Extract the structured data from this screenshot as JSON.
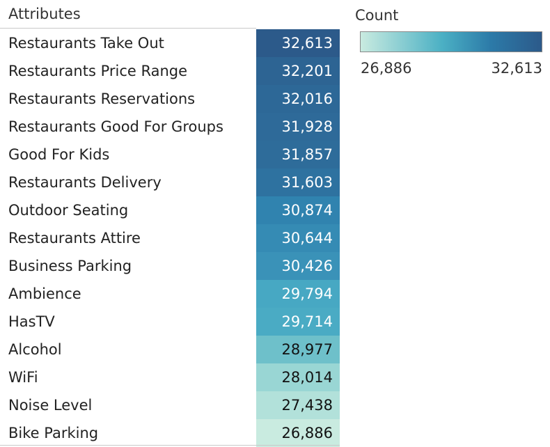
{
  "chart_data": {
    "type": "table",
    "row_header": "Attributes",
    "measure": "Count",
    "categories": [
      "Restaurants Take Out",
      "Restaurants Price Range",
      "Restaurants Reservations",
      "Restaurants Good For Groups",
      "Good For Kids",
      "Restaurants Delivery",
      "Outdoor Seating",
      "Restaurants Attire",
      "Business Parking",
      "Ambience",
      "HasTV",
      "Alcohol",
      "WiFi",
      "Noise Level",
      "Bike Parking"
    ],
    "values": [
      32613,
      32201,
      32016,
      31928,
      31857,
      31603,
      30874,
      30644,
      30426,
      29794,
      29714,
      28977,
      28014,
      27438,
      26886
    ],
    "display_values": [
      "32,613",
      "32,201",
      "32,016",
      "31,928",
      "31,857",
      "31,603",
      "30,874",
      "30,644",
      "30,426",
      "29,794",
      "29,714",
      "28,977",
      "28,014",
      "27,438",
      "26,886"
    ],
    "legend": {
      "title": "Count",
      "min_label": "26,886",
      "max_label": "32,613",
      "placement": "top-right"
    },
    "color_range": [
      "#c9ebe0",
      "#2c5a8a"
    ]
  }
}
